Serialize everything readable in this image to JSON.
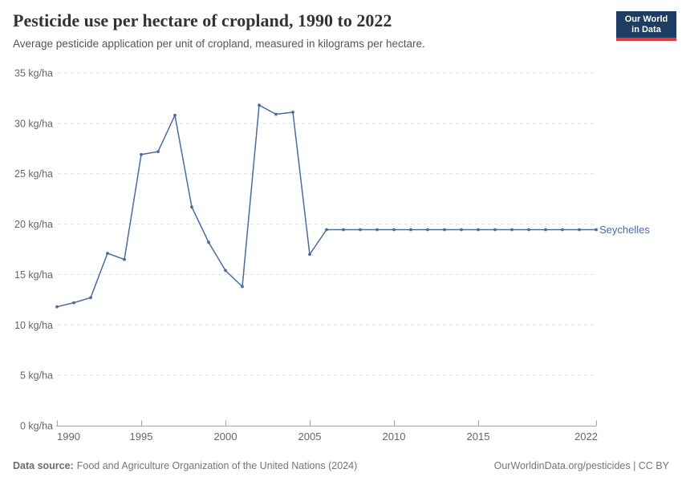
{
  "header": {
    "title": "Pesticide use per hectare of cropland, 1990 to 2022",
    "subtitle": "Average pesticide application per unit of cropland, measured in kilograms per hectare."
  },
  "logo": {
    "line1": "Our World",
    "line2": "in Data",
    "bg_color": "#1d3d63",
    "bar_color": "#d93b3f"
  },
  "chart_data": {
    "type": "line",
    "title": "Pesticide use per hectare of cropland, 1990 to 2022",
    "unit": "kg/ha",
    "xlabel": "",
    "ylabel": "kg/ha",
    "ylim": [
      0,
      35
    ],
    "ytick_step": 5,
    "xlim": [
      1990,
      2022
    ],
    "xticks": [
      1990,
      1995,
      2000,
      2005,
      2010,
      2015,
      2022
    ],
    "grid": "horizontal-dashed",
    "legend_position": "line-end-label",
    "x": [
      1990,
      1991,
      1992,
      1993,
      1994,
      1995,
      1996,
      1997,
      1998,
      1999,
      2000,
      2001,
      2002,
      2003,
      2004,
      2005,
      2006,
      2007,
      2008,
      2009,
      2010,
      2011,
      2012,
      2013,
      2014,
      2015,
      2016,
      2017,
      2018,
      2019,
      2020,
      2021,
      2022
    ],
    "series": [
      {
        "name": "Seychelles",
        "color": "#4c6a9c",
        "values": [
          11.8,
          12.2,
          12.7,
          17.1,
          16.5,
          26.9,
          27.2,
          30.8,
          21.7,
          18.2,
          15.4,
          13.8,
          31.8,
          30.9,
          31.1,
          17.0,
          19.45,
          19.45,
          19.45,
          19.45,
          19.45,
          19.45,
          19.45,
          19.45,
          19.45,
          19.45,
          19.45,
          19.45,
          19.45,
          19.45,
          19.45,
          19.45,
          19.45
        ]
      }
    ]
  },
  "footer": {
    "datasource_label": "Data source:",
    "datasource_text": "Food and Agriculture Organization of the United Nations (2024)",
    "credit": "OurWorldinData.org/pesticides | CC BY"
  }
}
